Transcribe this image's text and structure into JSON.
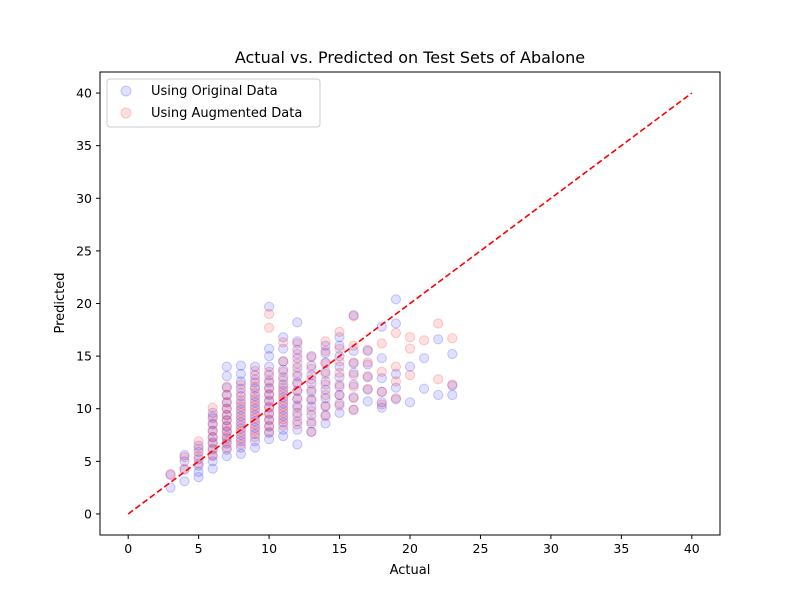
{
  "chart_data": {
    "type": "scatter",
    "title": "Actual vs. Predicted on Test Sets of Abalone",
    "xlabel": "Actual",
    "ylabel": "Predicted",
    "xlim": [
      -2,
      42
    ],
    "ylim": [
      -2,
      42
    ],
    "xticks": [
      0,
      5,
      10,
      15,
      20,
      25,
      30,
      35,
      40
    ],
    "yticks": [
      0,
      5,
      10,
      15,
      20,
      25,
      30,
      35,
      40
    ],
    "grid": false,
    "legend_position": "top-left",
    "reference_line": {
      "x": [
        0,
        40
      ],
      "y": [
        0,
        40
      ],
      "color": "#ff0000",
      "style": "dashed"
    },
    "series": [
      {
        "name": "Using Original Data",
        "color": "#0000ff",
        "points": [
          [
            3,
            2.5
          ],
          [
            3,
            3.7
          ],
          [
            4,
            3.1
          ],
          [
            4,
            4.2
          ],
          [
            4,
            5.0
          ],
          [
            4,
            5.6
          ],
          [
            5,
            3.5
          ],
          [
            5,
            4.0
          ],
          [
            5,
            4.6
          ],
          [
            5,
            5.2
          ],
          [
            5,
            5.9
          ],
          [
            5,
            6.5
          ],
          [
            6,
            4.3
          ],
          [
            6,
            5.0
          ],
          [
            6,
            5.6
          ],
          [
            6,
            6.2
          ],
          [
            6,
            6.8
          ],
          [
            6,
            7.3
          ],
          [
            6,
            7.9
          ],
          [
            6,
            8.5
          ],
          [
            6,
            9.1
          ],
          [
            6,
            9.6
          ],
          [
            7,
            5.5
          ],
          [
            7,
            6.1
          ],
          [
            7,
            6.7
          ],
          [
            7,
            7.2
          ],
          [
            7,
            7.8
          ],
          [
            7,
            8.3
          ],
          [
            7,
            8.9
          ],
          [
            7,
            9.4
          ],
          [
            7,
            10.0
          ],
          [
            7,
            10.6
          ],
          [
            7,
            11.3
          ],
          [
            7,
            12.0
          ],
          [
            7,
            13.1
          ],
          [
            7,
            14.0
          ],
          [
            8,
            5.7
          ],
          [
            8,
            6.3
          ],
          [
            8,
            6.9
          ],
          [
            8,
            7.5
          ],
          [
            8,
            8.1
          ],
          [
            8,
            8.7
          ],
          [
            8,
            9.3
          ],
          [
            8,
            9.9
          ],
          [
            8,
            10.5
          ],
          [
            8,
            11.2
          ],
          [
            8,
            11.9
          ],
          [
            8,
            12.6
          ],
          [
            8,
            13.3
          ],
          [
            8,
            14.1
          ],
          [
            9,
            6.3
          ],
          [
            9,
            6.9
          ],
          [
            9,
            7.6
          ],
          [
            9,
            8.2
          ],
          [
            9,
            8.8
          ],
          [
            9,
            9.4
          ],
          [
            9,
            10.0
          ],
          [
            9,
            10.6
          ],
          [
            9,
            11.2
          ],
          [
            9,
            11.9
          ],
          [
            9,
            12.5
          ],
          [
            9,
            13.2
          ],
          [
            9,
            14.0
          ],
          [
            10,
            7.1
          ],
          [
            10,
            7.7
          ],
          [
            10,
            8.3
          ],
          [
            10,
            8.9
          ],
          [
            10,
            9.5
          ],
          [
            10,
            10.1
          ],
          [
            10,
            10.7
          ],
          [
            10,
            11.3
          ],
          [
            10,
            11.9
          ],
          [
            10,
            12.5
          ],
          [
            10,
            13.2
          ],
          [
            10,
            14.0
          ],
          [
            10,
            15.0
          ],
          [
            10,
            15.7
          ],
          [
            10,
            19.7
          ],
          [
            11,
            7.4
          ],
          [
            11,
            8.0
          ],
          [
            11,
            8.7
          ],
          [
            11,
            9.3
          ],
          [
            11,
            9.9
          ],
          [
            11,
            10.5
          ],
          [
            11,
            11.1
          ],
          [
            11,
            11.7
          ],
          [
            11,
            12.3
          ],
          [
            11,
            13.0
          ],
          [
            11,
            13.7
          ],
          [
            11,
            14.5
          ],
          [
            11,
            15.7
          ],
          [
            11,
            16.8
          ],
          [
            12,
            6.6
          ],
          [
            12,
            8.0
          ],
          [
            12,
            8.8
          ],
          [
            12,
            9.6
          ],
          [
            12,
            10.3
          ],
          [
            12,
            11.0
          ],
          [
            12,
            11.7
          ],
          [
            12,
            12.4
          ],
          [
            12,
            13.1
          ],
          [
            12,
            13.9
          ],
          [
            12,
            14.8
          ],
          [
            12,
            15.6
          ],
          [
            12,
            16.4
          ],
          [
            12,
            18.2
          ],
          [
            13,
            7.8
          ],
          [
            13,
            8.6
          ],
          [
            13,
            9.4
          ],
          [
            13,
            10.2
          ],
          [
            13,
            10.9
          ],
          [
            13,
            11.6
          ],
          [
            13,
            12.4
          ],
          [
            13,
            13.2
          ],
          [
            13,
            14.1
          ],
          [
            13,
            15.0
          ],
          [
            14,
            8.6
          ],
          [
            14,
            9.4
          ],
          [
            14,
            10.2
          ],
          [
            14,
            11.0
          ],
          [
            14,
            11.8
          ],
          [
            14,
            12.6
          ],
          [
            14,
            13.5
          ],
          [
            14,
            14.4
          ],
          [
            14,
            15.3
          ],
          [
            14,
            16.0
          ],
          [
            15,
            9.6
          ],
          [
            15,
            10.5
          ],
          [
            15,
            11.3
          ],
          [
            15,
            12.1
          ],
          [
            15,
            13.0
          ],
          [
            15,
            14.0
          ],
          [
            15,
            15.0
          ],
          [
            15,
            16.0
          ],
          [
            15,
            16.8
          ],
          [
            16,
            9.9
          ],
          [
            16,
            11.1
          ],
          [
            16,
            12.3
          ],
          [
            16,
            13.4
          ],
          [
            16,
            14.3
          ],
          [
            16,
            15.5
          ],
          [
            16,
            18.9
          ],
          [
            17,
            10.7
          ],
          [
            17,
            11.8
          ],
          [
            17,
            13.0
          ],
          [
            17,
            14.2
          ],
          [
            17,
            15.5
          ],
          [
            18,
            10.1
          ],
          [
            18,
            10.6
          ],
          [
            18,
            11.6
          ],
          [
            18,
            12.9
          ],
          [
            18,
            14.8
          ],
          [
            18,
            17.8
          ],
          [
            19,
            10.9
          ],
          [
            19,
            12.0
          ],
          [
            19,
            13.3
          ],
          [
            19,
            18.1
          ],
          [
            19,
            20.4
          ],
          [
            20,
            10.6
          ],
          [
            20,
            14.0
          ],
          [
            21,
            11.9
          ],
          [
            21,
            14.8
          ],
          [
            22,
            11.3
          ],
          [
            22,
            16.6
          ],
          [
            23,
            11.3
          ],
          [
            23,
            12.2
          ],
          [
            23,
            15.2
          ]
        ]
      },
      {
        "name": "Using Augmented Data",
        "color": "#ff0000",
        "points": [
          [
            3,
            3.8
          ],
          [
            4,
            4.3
          ],
          [
            4,
            5.4
          ],
          [
            5,
            4.8
          ],
          [
            5,
            5.5
          ],
          [
            5,
            6.2
          ],
          [
            5,
            6.9
          ],
          [
            6,
            5.5
          ],
          [
            6,
            6.1
          ],
          [
            6,
            6.7
          ],
          [
            6,
            7.3
          ],
          [
            6,
            7.9
          ],
          [
            6,
            8.6
          ],
          [
            6,
            9.3
          ],
          [
            6,
            10.1
          ],
          [
            7,
            6.3
          ],
          [
            7,
            6.9
          ],
          [
            7,
            7.4
          ],
          [
            7,
            7.9
          ],
          [
            7,
            8.4
          ],
          [
            7,
            8.9
          ],
          [
            7,
            9.4
          ],
          [
            7,
            10.0
          ],
          [
            7,
            10.6
          ],
          [
            7,
            11.3
          ],
          [
            7,
            12.1
          ],
          [
            8,
            6.6
          ],
          [
            8,
            7.2
          ],
          [
            8,
            7.8
          ],
          [
            8,
            8.4
          ],
          [
            8,
            9.0
          ],
          [
            8,
            9.6
          ],
          [
            8,
            10.2
          ],
          [
            8,
            10.8
          ],
          [
            8,
            11.5
          ],
          [
            8,
            12.3
          ],
          [
            9,
            7.3
          ],
          [
            9,
            7.9
          ],
          [
            9,
            8.5
          ],
          [
            9,
            9.1
          ],
          [
            9,
            9.7
          ],
          [
            9,
            10.3
          ],
          [
            9,
            10.9
          ],
          [
            9,
            11.5
          ],
          [
            9,
            12.1
          ],
          [
            9,
            12.8
          ],
          [
            9,
            13.6
          ],
          [
            10,
            7.8
          ],
          [
            10,
            8.4
          ],
          [
            10,
            9.0
          ],
          [
            10,
            9.6
          ],
          [
            10,
            10.2
          ],
          [
            10,
            10.8
          ],
          [
            10,
            11.4
          ],
          [
            10,
            12.0
          ],
          [
            10,
            12.7
          ],
          [
            10,
            13.5
          ],
          [
            10,
            17.7
          ],
          [
            10,
            19.0
          ],
          [
            11,
            8.4
          ],
          [
            11,
            9.0
          ],
          [
            11,
            9.6
          ],
          [
            11,
            10.2
          ],
          [
            11,
            10.8
          ],
          [
            11,
            11.4
          ],
          [
            11,
            12.0
          ],
          [
            11,
            12.7
          ],
          [
            11,
            13.5
          ],
          [
            11,
            14.5
          ],
          [
            11,
            16.3
          ],
          [
            12,
            8.5
          ],
          [
            12,
            9.3
          ],
          [
            12,
            10.1
          ],
          [
            12,
            10.9
          ],
          [
            12,
            11.7
          ],
          [
            12,
            12.5
          ],
          [
            12,
            13.4
          ],
          [
            12,
            14.3
          ],
          [
            12,
            15.2
          ],
          [
            12,
            16.2
          ],
          [
            13,
            7.8
          ],
          [
            13,
            8.8
          ],
          [
            13,
            9.8
          ],
          [
            13,
            10.8
          ],
          [
            13,
            11.8
          ],
          [
            13,
            12.8
          ],
          [
            13,
            13.8
          ],
          [
            13,
            14.9
          ],
          [
            14,
            9.3
          ],
          [
            14,
            10.3
          ],
          [
            14,
            11.3
          ],
          [
            14,
            12.3
          ],
          [
            14,
            13.3
          ],
          [
            14,
            14.3
          ],
          [
            14,
            15.5
          ],
          [
            14,
            16.4
          ],
          [
            15,
            10.3
          ],
          [
            15,
            11.3
          ],
          [
            15,
            12.3
          ],
          [
            15,
            13.4
          ],
          [
            15,
            14.5
          ],
          [
            15,
            15.7
          ],
          [
            15,
            17.3
          ],
          [
            16,
            9.9
          ],
          [
            16,
            11.0
          ],
          [
            16,
            12.1
          ],
          [
            16,
            13.2
          ],
          [
            16,
            14.4
          ],
          [
            16,
            16.0
          ],
          [
            16,
            18.8
          ],
          [
            17,
            11.9
          ],
          [
            17,
            13.1
          ],
          [
            17,
            14.4
          ],
          [
            17,
            15.6
          ],
          [
            18,
            10.4
          ],
          [
            18,
            11.6
          ],
          [
            18,
            13.5
          ],
          [
            18,
            16.2
          ],
          [
            19,
            11.0
          ],
          [
            19,
            12.6
          ],
          [
            19,
            14.0
          ],
          [
            19,
            17.2
          ],
          [
            20,
            13.2
          ],
          [
            20,
            15.7
          ],
          [
            20,
            16.8
          ],
          [
            21,
            16.5
          ],
          [
            22,
            12.8
          ],
          [
            22,
            18.1
          ],
          [
            23,
            12.3
          ],
          [
            23,
            16.7
          ]
        ]
      }
    ]
  }
}
